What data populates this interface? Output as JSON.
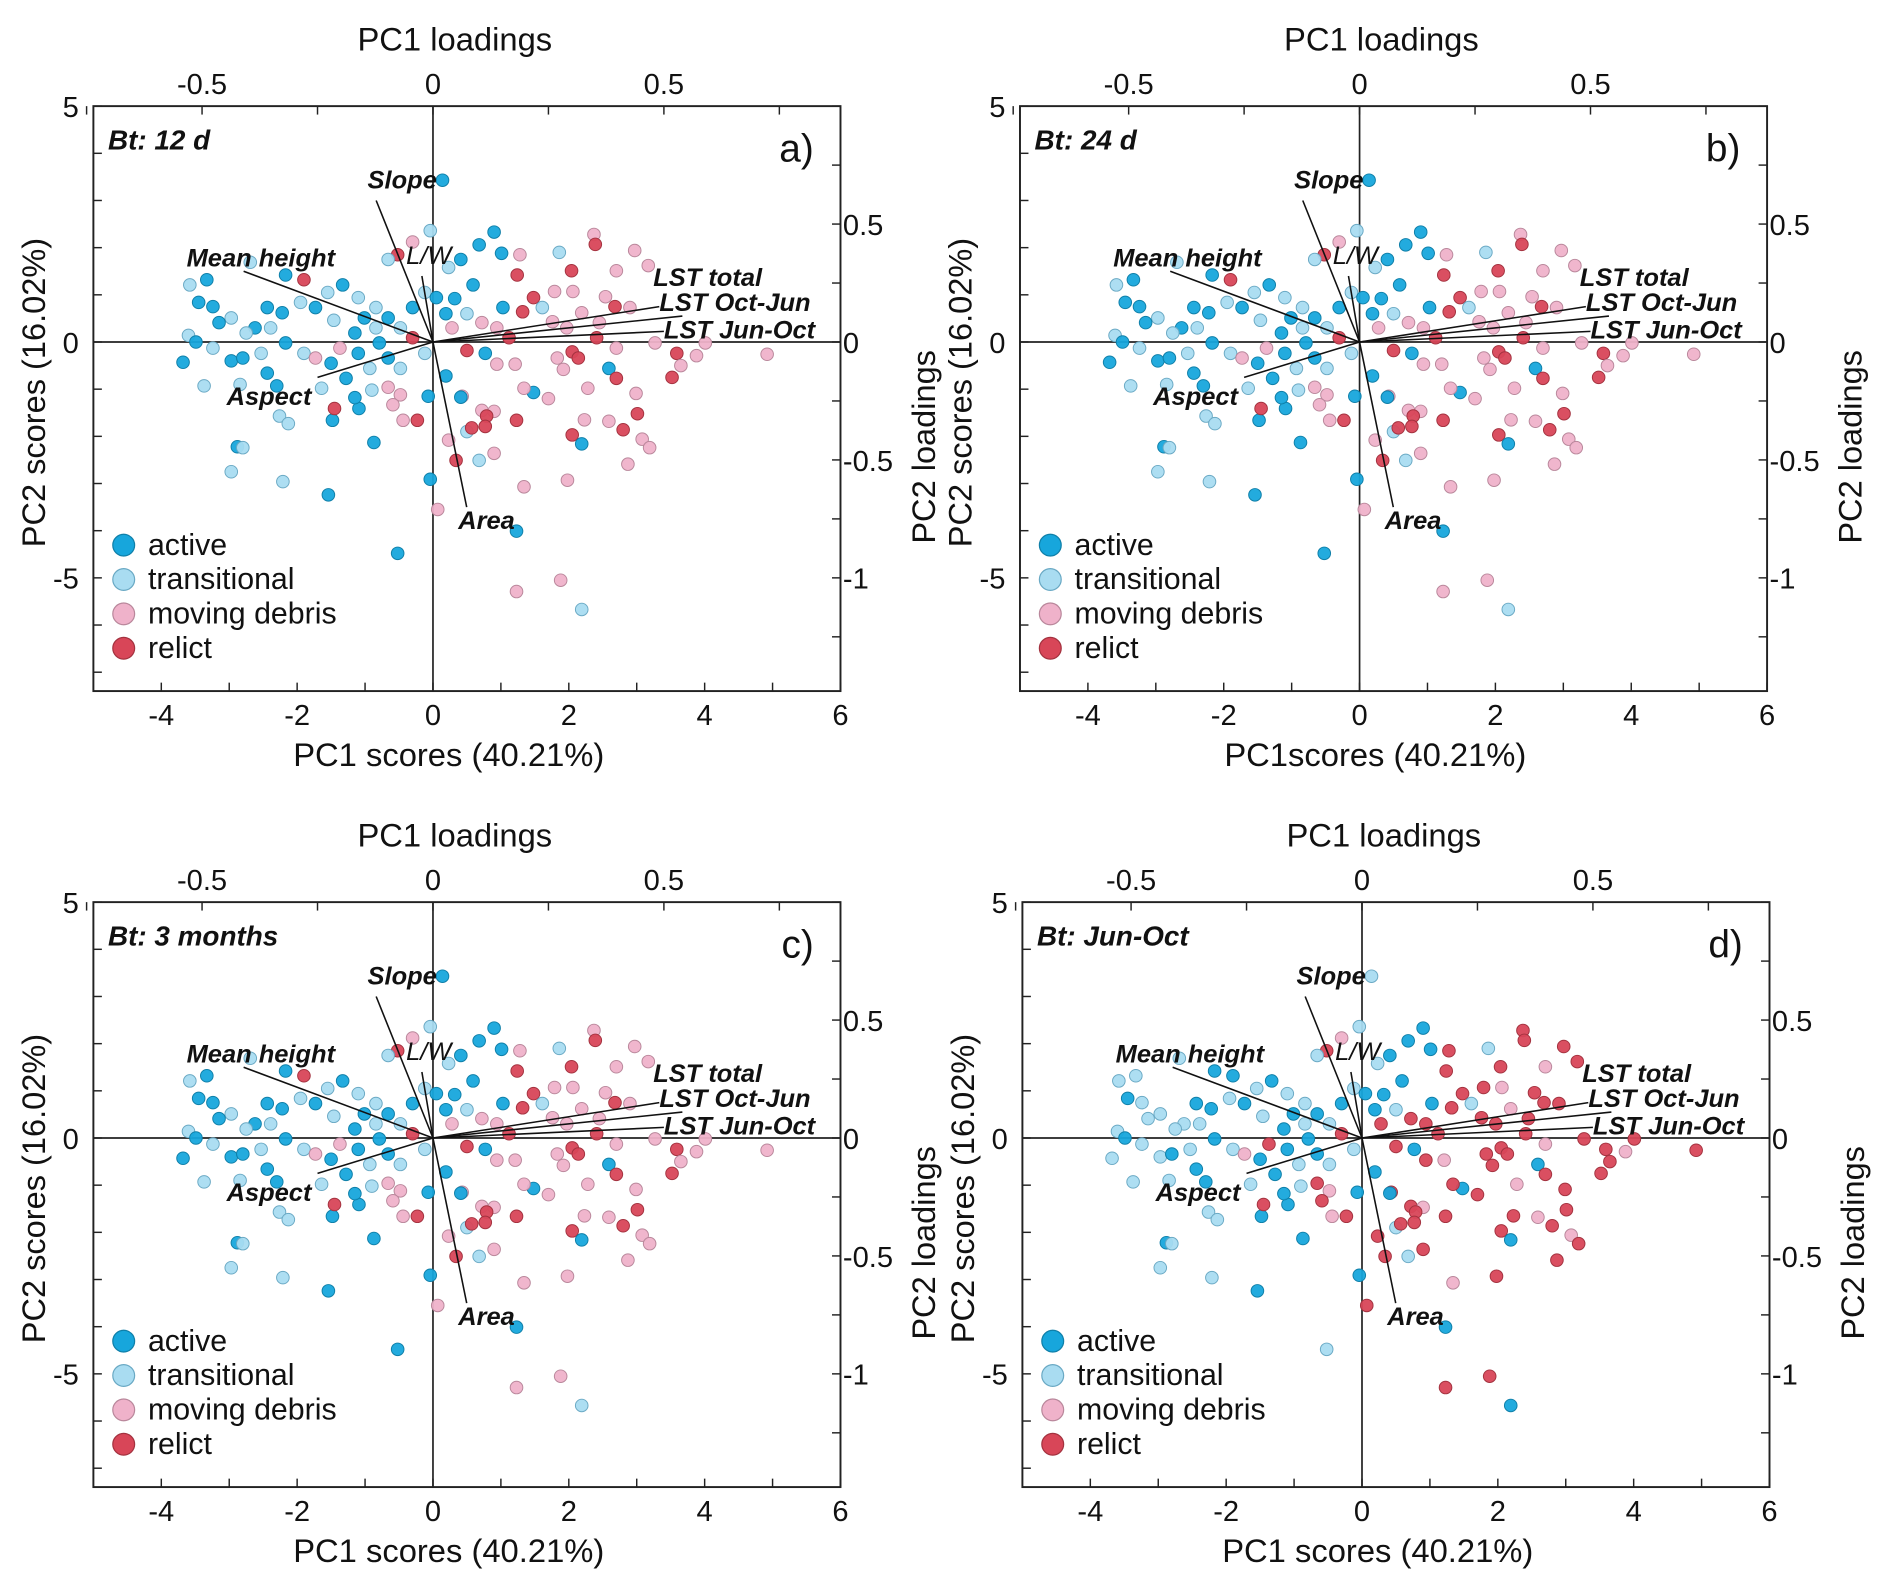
{
  "chart_data": {
    "type": "scatter",
    "subtype": "pca-biplot",
    "xlim": [
      -5,
      6
    ],
    "ylim": [
      -7.4,
      5
    ],
    "x_ticks": [
      -4,
      -2,
      0,
      2,
      4,
      6
    ],
    "y_ticks": [
      -5,
      0,
      5
    ],
    "top_ticks": [
      -0.5,
      0,
      0.5
    ],
    "right_ticks": [
      0.5,
      0,
      -0.5,
      -1
    ],
    "loading_scale_x": 6.8,
    "loading_scale_y": 5.0,
    "legend": {
      "placement": "bottom-left",
      "classes": [
        {
          "code": "a",
          "label": "active",
          "color": "#17a6dc"
        },
        {
          "code": "t",
          "label": "transitional",
          "color": "#a9dcf1"
        },
        {
          "code": "m",
          "label": "moving debris",
          "color": "#efb2ca"
        },
        {
          "code": "r",
          "label": "relict",
          "color": "#d84658"
        }
      ]
    },
    "loadings": [
      {
        "name": "Slope",
        "pc1": -0.123,
        "pc2": 0.6
      },
      {
        "name": "L/W",
        "pc1": -0.024,
        "pc2": 0.28
      },
      {
        "name": "Mean height",
        "pc1": -0.41,
        "pc2": 0.3
      },
      {
        "name": "Aspect",
        "pc1": -0.25,
        "pc2": -0.15
      },
      {
        "name": "Area",
        "pc1": 0.073,
        "pc2": -0.7
      },
      {
        "name": "LST total",
        "pc1": 0.49,
        "pc2": 0.15
      },
      {
        "name": "LST Oct-Jun",
        "pc1": 0.54,
        "pc2": 0.11
      },
      {
        "name": "LST Jun-Oct",
        "pc1": 0.5,
        "pc2": 0.045
      }
    ],
    "panels": [
      {
        "title": "Bt: 12 d",
        "label": "a)",
        "xlabel": "PC1 scores (40.21%)",
        "ylabel": "PC2 scores (16.02%)",
        "top_label": "PC1 loadings",
        "right_label": "PC2 loadings"
      },
      {
        "title": "Bt: 24 d",
        "label": "b)",
        "xlabel": "PC1scores (40.21%)",
        "ylabel": "PC2 scores (16.02%)",
        "top_label": "PC1 loadings",
        "right_label": "PC2 loadings"
      },
      {
        "title": "Bt: 3 months",
        "label": "c)",
        "xlabel": "PC1 scores (40.21%)",
        "ylabel": "PC2 scores (16.02%)",
        "top_label": "PC1 loadings",
        "right_label": "PC2 loadings"
      },
      {
        "title": "Bt: Jun-Oct",
        "label": "d)",
        "xlabel": "PC1 scores (40.21%)",
        "ylabel": "PC2 scores (16.02%)",
        "top_label": "PC1 loadings",
        "right_label": "PC2 loadings"
      }
    ],
    "points_format": "[PC1 score, PC2 score, class in panels a,b,c,d]",
    "points": [
      [
        0.14,
        3.43,
        "aaat"
      ],
      [
        -0.04,
        2.36,
        "tttt"
      ],
      [
        0.9,
        2.33,
        "aaaa"
      ],
      [
        0.68,
        2.06,
        "aaaa"
      ],
      [
        1.01,
        1.88,
        "aaaa"
      ],
      [
        1.28,
        1.85,
        "mmmr"
      ],
      [
        1.86,
        1.9,
        "tttt"
      ],
      [
        2.37,
        2.28,
        "mmmr"
      ],
      [
        2.39,
        2.07,
        "rrrr"
      ],
      [
        2.97,
        1.94,
        "mmmr"
      ],
      [
        3.17,
        1.62,
        "mmmr"
      ],
      [
        2.7,
        1.51,
        "mmmm"
      ],
      [
        2.04,
        1.51,
        "rrrr"
      ],
      [
        1.24,
        1.42,
        "rrrr"
      ],
      [
        0.41,
        1.75,
        "aaaa"
      ],
      [
        -0.3,
        2.12,
        "mmmm"
      ],
      [
        -0.52,
        1.85,
        "rrrr"
      ],
      [
        -0.66,
        1.75,
        "tttt"
      ],
      [
        0.23,
        1.58,
        "tttt"
      ],
      [
        -1.9,
        1.32,
        "rrra"
      ],
      [
        -2.17,
        1.42,
        "aaaa"
      ],
      [
        -2.69,
        1.69,
        "tttt"
      ],
      [
        -3.33,
        1.32,
        "aaat"
      ],
      [
        -3.58,
        1.21,
        "tttt"
      ],
      [
        -3.45,
        0.84,
        "aaaa"
      ],
      [
        -3.24,
        0.75,
        "aaat"
      ],
      [
        -3.68,
        -0.43,
        "aaat"
      ],
      [
        -3.6,
        0.14,
        "tttt"
      ],
      [
        -3.49,
        0,
        "aaaa"
      ],
      [
        -3.37,
        -0.93,
        "tttt"
      ],
      [
        -2.97,
        -0.4,
        "aaat"
      ],
      [
        -2.84,
        -0.9,
        "tttt"
      ],
      [
        -2.44,
        -0.66,
        "aaaa"
      ],
      [
        -2.3,
        -0.93,
        "aaaa"
      ],
      [
        -2.26,
        -1.57,
        "tttt"
      ],
      [
        -2.13,
        -1.73,
        "tttt"
      ],
      [
        -2.88,
        -2.22,
        "aaaa"
      ],
      [
        -2.8,
        -2.24,
        "tttt"
      ],
      [
        -2.97,
        -2.75,
        "tttt"
      ],
      [
        -2.21,
        -2.96,
        "tttt"
      ],
      [
        -1.54,
        -3.24,
        "aaaa"
      ],
      [
        -0.52,
        -4.48,
        "aaat"
      ],
      [
        -0.87,
        -2.13,
        "aaaa"
      ],
      [
        -1.48,
        -1.66,
        "aaaa"
      ],
      [
        -1.45,
        -1.41,
        "rrrr"
      ],
      [
        -1.09,
        -1.41,
        "aaaa"
      ],
      [
        -1.15,
        -1.18,
        "aaaa"
      ],
      [
        -0.9,
        -1.02,
        "tttt"
      ],
      [
        -0.66,
        -0.96,
        "mmmr"
      ],
      [
        -0.48,
        -1.12,
        "mmmm"
      ],
      [
        -0.59,
        -1.33,
        "mmmr"
      ],
      [
        -0.44,
        -1.66,
        "mmmm"
      ],
      [
        -0.23,
        -1.66,
        "rrrr"
      ],
      [
        -0.07,
        -1.15,
        "aaaa"
      ],
      [
        -0.04,
        -2.91,
        "aaaa"
      ],
      [
        0.19,
        -0.72,
        "aaaa"
      ],
      [
        0.43,
        -1.15,
        "mmmr"
      ],
      [
        0.41,
        -1.17,
        "aaaa"
      ],
      [
        0.5,
        -1.9,
        "tttt"
      ],
      [
        0.57,
        -1.82,
        "rrrr"
      ],
      [
        0.23,
        -2.08,
        "mmmr"
      ],
      [
        0.34,
        -2.51,
        "rrrr"
      ],
      [
        0.68,
        -2.51,
        "tttt"
      ],
      [
        0.9,
        -2.36,
        "mmmr"
      ],
      [
        0.72,
        -1.45,
        "mmmr"
      ],
      [
        0.9,
        -1.47,
        "mmmm"
      ],
      [
        0.79,
        -1.57,
        "rrrr"
      ],
      [
        0.77,
        -1.79,
        "rrrr"
      ],
      [
        1.23,
        -1.66,
        "rrrr"
      ],
      [
        1.34,
        -3.07,
        "mmmm"
      ],
      [
        0.07,
        -3.55,
        "mmmr"
      ],
      [
        1.23,
        -4.01,
        "aaaa"
      ],
      [
        1.88,
        -5.05,
        "mmmr"
      ],
      [
        1.23,
        -5.29,
        "mmmr"
      ],
      [
        2.19,
        -5.67,
        "ttta"
      ],
      [
        1.98,
        -2.93,
        "mmmr"
      ],
      [
        2.05,
        -1.97,
        "rrrr"
      ],
      [
        2.19,
        -2.16,
        "aaaa"
      ],
      [
        2.23,
        -1.65,
        "mmmr"
      ],
      [
        2.59,
        -1.68,
        "mmmm"
      ],
      [
        2.8,
        -1.86,
        "rrrr"
      ],
      [
        3.08,
        -2.06,
        "mmmm"
      ],
      [
        3.19,
        -2.24,
        "mmmr"
      ],
      [
        2.87,
        -2.59,
        "mmmr"
      ],
      [
        2.99,
        -1.09,
        "mmmr"
      ],
      [
        3.01,
        -1.52,
        "rrrr"
      ],
      [
        2.28,
        -0.98,
        "mmmm"
      ],
      [
        1.92,
        -0.58,
        "mmmr"
      ],
      [
        1.7,
        -1.2,
        "mmmr"
      ],
      [
        1.48,
        -1.07,
        "aaaa"
      ],
      [
        1.34,
        -0.98,
        "mmmr"
      ],
      [
        2.59,
        -0.56,
        "aaaa"
      ],
      [
        2.7,
        -0.77,
        "rrrr"
      ],
      [
        3.52,
        -0.75,
        "rrrr"
      ],
      [
        3.59,
        -0.24,
        "rrrr"
      ],
      [
        3.65,
        -0.5,
        "mmmr"
      ],
      [
        3.88,
        -0.29,
        "mmmm"
      ],
      [
        4.01,
        -0.02,
        "mmmr"
      ],
      [
        4.92,
        -0.26,
        "mmmr"
      ],
      [
        3.27,
        -0.02,
        "mmmr"
      ],
      [
        2.9,
        0.73,
        "mmmr"
      ],
      [
        2.68,
        0.75,
        "rrrr"
      ],
      [
        2.54,
        0.96,
        "mmmr"
      ],
      [
        2.06,
        1.07,
        "mmmm"
      ],
      [
        1.79,
        1.07,
        "mmmr"
      ],
      [
        1.48,
        0.94,
        "rrrr"
      ],
      [
        1.32,
        0.64,
        "rrrr"
      ],
      [
        1.61,
        0.73,
        "tttt"
      ],
      [
        1.76,
        0.43,
        "mmmr"
      ],
      [
        1.97,
        0.3,
        "mmmr"
      ],
      [
        2.19,
        0.62,
        "mmmm"
      ],
      [
        2.45,
        0.41,
        "mmmr"
      ],
      [
        2.41,
        0.09,
        "rrrr"
      ],
      [
        2.05,
        -0.21,
        "rrrr"
      ],
      [
        2.14,
        -0.34,
        "rrrr"
      ],
      [
        1.83,
        -0.34,
        "mmmr"
      ],
      [
        2.7,
        -0.13,
        "mmmm"
      ],
      [
        1.12,
        0.09,
        "rrrr"
      ],
      [
        0.94,
        0.3,
        "mmmr"
      ],
      [
        1.03,
        0.73,
        "aaaa"
      ],
      [
        0.72,
        0.41,
        "mmmr"
      ],
      [
        0.59,
        1.21,
        "aaaa"
      ],
      [
        0.32,
        0.92,
        "aaaa"
      ],
      [
        0.5,
        0.6,
        "tttt"
      ],
      [
        0.19,
        0.6,
        "aaaa"
      ],
      [
        0.28,
        0.3,
        "mmmr"
      ],
      [
        0.77,
        -0.24,
        "aaaa"
      ],
      [
        0.94,
        -0.47,
        "mmmr"
      ],
      [
        1.21,
        -0.47,
        "mmmm"
      ],
      [
        0.5,
        -0.18,
        "rrrr"
      ],
      [
        -0.12,
        -0.24,
        "tttt"
      ],
      [
        -0.3,
        0.09,
        "rrrr"
      ],
      [
        -0.48,
        0.3,
        "tttt"
      ],
      [
        -0.66,
        0.51,
        "aaaa"
      ],
      [
        -0.84,
        0.3,
        "tttt"
      ],
      [
        -1.01,
        0.51,
        "aaaa"
      ],
      [
        -1.1,
        0.94,
        "tttt"
      ],
      [
        -1.33,
        1.21,
        "aaaa"
      ],
      [
        -1.55,
        1.05,
        "tttt"
      ],
      [
        -1.73,
        0.73,
        "aaaa"
      ],
      [
        -1.95,
        0.84,
        "tttt"
      ],
      [
        -2.22,
        0.62,
        "aaaa"
      ],
      [
        -2.39,
        0.3,
        "tttt"
      ],
      [
        -2.62,
        0.3,
        "aaat"
      ],
      [
        -2.75,
        0.19,
        "tttt"
      ],
      [
        -2.44,
        0.73,
        "aaaa"
      ],
      [
        -2.97,
        0.51,
        "tttt"
      ],
      [
        -3.15,
        0.41,
        "aaat"
      ],
      [
        -2.17,
        -0.02,
        "aaaa"
      ],
      [
        -1.9,
        -0.24,
        "tttt"
      ],
      [
        -1.73,
        -0.34,
        "mmmm"
      ],
      [
        -1.5,
        -0.45,
        "aaaa"
      ],
      [
        -1.37,
        -0.13,
        "mmmr"
      ],
      [
        -1.1,
        -0.24,
        "aaaa"
      ],
      [
        -0.93,
        -0.56,
        "tttt"
      ],
      [
        -0.66,
        -0.34,
        "aaaa"
      ],
      [
        -0.48,
        -0.56,
        "tttt"
      ],
      [
        -1.28,
        -0.77,
        "aaaa"
      ],
      [
        -1.64,
        -0.98,
        "tttt"
      ],
      [
        -2.53,
        -0.24,
        "tttt"
      ],
      [
        -2.8,
        -0.34,
        "aaaa"
      ],
      [
        -3.24,
        -0.13,
        "tttt"
      ],
      [
        -0.3,
        0.73,
        "aaaa"
      ],
      [
        -0.12,
        1.05,
        "tttt"
      ],
      [
        0.05,
        0.94,
        "aaaa"
      ],
      [
        -0.84,
        0.73,
        "tttt"
      ],
      [
        -1.46,
        0.46,
        "tttt"
      ],
      [
        -1.15,
        0.19,
        "aaaa"
      ],
      [
        -0.79,
        -0.02,
        "aaaa"
      ]
    ]
  }
}
